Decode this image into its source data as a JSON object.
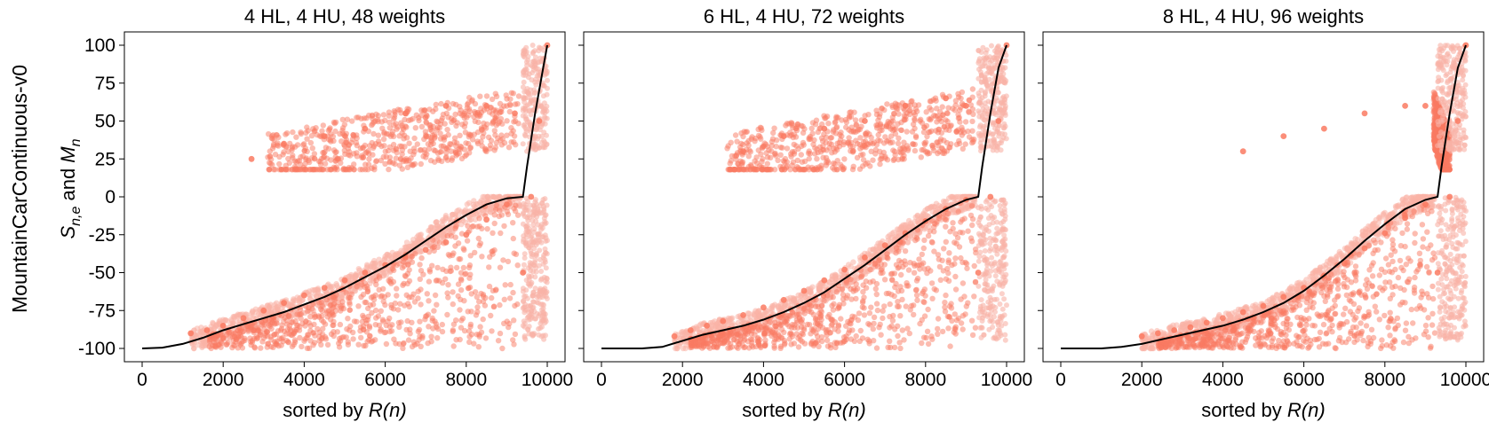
{
  "figure": {
    "row_label": "MountainCarContinuous-v0",
    "ylabel": {
      "prefix": "S",
      "prefix_sub": "n,e",
      "middle": " and ",
      "suffix": "M",
      "suffix_sub": "n"
    },
    "xlabel": {
      "text": "sorted by ",
      "math": "R(n)"
    }
  },
  "colors": {
    "scatter": "#fa7a62",
    "scatter_light": "#f9b3a6",
    "line": "#000000"
  },
  "chart_data": [
    {
      "type": "scatter",
      "title": "4 HL, 4 HU, 48 weights",
      "xlim": [
        0,
        10000
      ],
      "ylim": [
        -100,
        100
      ],
      "xticks": [
        0,
        2000,
        4000,
        6000,
        8000,
        10000
      ],
      "yticks": [
        100,
        75,
        50,
        25,
        0,
        -25,
        -50,
        -75,
        -100
      ],
      "show_yticklabels": true,
      "series": [
        {
          "role": "scatter",
          "x": [
            1200,
            1600,
            2000,
            2500,
            3000,
            3500,
            4000,
            4500,
            5000,
            5500,
            6000,
            6500,
            7000,
            7500,
            8000,
            8500,
            9000,
            9400,
            9600,
            9800,
            10000,
            2700,
            3500,
            4500,
            5500,
            6500,
            7500,
            8500,
            9200
          ],
          "y": [
            -90,
            -88,
            -85,
            -80,
            -75,
            -70,
            -65,
            -60,
            -55,
            -50,
            -45,
            -40,
            -35,
            -30,
            -25,
            -15,
            -5,
            -50,
            0,
            50,
            100,
            25,
            35,
            40,
            45,
            55,
            60,
            60,
            55
          ]
        },
        {
          "role": "mean",
          "x": [
            0,
            500,
            1000,
            1500,
            2000,
            2500,
            3000,
            3500,
            4000,
            4500,
            5000,
            5500,
            6000,
            6500,
            7000,
            7500,
            8000,
            8500,
            9000,
            9400,
            9500,
            9700,
            9900,
            10000
          ],
          "y": [
            -100,
            -99.5,
            -97,
            -93,
            -88,
            -84,
            -80,
            -76,
            -71,
            -66,
            -60,
            -53,
            -46,
            -38,
            -29,
            -20,
            -12,
            -5,
            -1,
            0,
            20,
            55,
            85,
            100
          ]
        }
      ]
    },
    {
      "type": "scatter",
      "title": "6 HL, 4 HU, 72 weights",
      "xlim": [
        0,
        10000
      ],
      "ylim": [
        -100,
        100
      ],
      "xticks": [
        0,
        2000,
        4000,
        6000,
        8000,
        10000
      ],
      "yticks": [
        100,
        75,
        50,
        25,
        0,
        -25,
        -50,
        -75,
        -100
      ],
      "show_yticklabels": false,
      "series": [
        {
          "role": "scatter",
          "x": [
            1800,
            2200,
            2600,
            3000,
            3500,
            4000,
            4500,
            5000,
            5500,
            6000,
            6500,
            7000,
            7500,
            8000,
            8500,
            9000,
            9300,
            9600,
            9800,
            10000,
            3500,
            4500,
            5500,
            6500,
            7500,
            8500,
            9000
          ],
          "y": [
            -92,
            -88,
            -85,
            -82,
            -78,
            -73,
            -68,
            -62,
            -55,
            -48,
            -40,
            -32,
            -24,
            -16,
            -8,
            -2,
            -50,
            0,
            50,
            100,
            30,
            40,
            45,
            50,
            60,
            65,
            60
          ]
        },
        {
          "role": "mean",
          "x": [
            0,
            500,
            1000,
            1500,
            2000,
            2500,
            3000,
            3500,
            4000,
            4500,
            5000,
            5500,
            6000,
            6500,
            7000,
            7500,
            8000,
            8500,
            9000,
            9300,
            9400,
            9600,
            9800,
            10000
          ],
          "y": [
            -100,
            -100,
            -100,
            -99,
            -95,
            -91,
            -88,
            -85,
            -81,
            -76,
            -70,
            -63,
            -54,
            -45,
            -35,
            -25,
            -16,
            -8,
            -2,
            0,
            20,
            55,
            85,
            100
          ]
        }
      ]
    },
    {
      "type": "scatter",
      "title": "8 HL, 4 HU, 96 weights",
      "xlim": [
        0,
        10000
      ],
      "ylim": [
        -100,
        100
      ],
      "xticks": [
        0,
        2000,
        4000,
        6000,
        8000,
        10000
      ],
      "yticks": [
        100,
        75,
        50,
        25,
        0,
        -25,
        -50,
        -75,
        -100
      ],
      "show_yticklabels": false,
      "series": [
        {
          "role": "scatter",
          "x": [
            2000,
            2400,
            2800,
            3200,
            3600,
            4000,
            4500,
            5000,
            5500,
            6000,
            6500,
            7000,
            7500,
            8000,
            8500,
            9000,
            9300,
            9600,
            9800,
            10000,
            4500,
            5500,
            6500,
            7500,
            8500,
            9000
          ],
          "y": [
            -92,
            -90,
            -88,
            -86,
            -83,
            -80,
            -76,
            -72,
            -66,
            -60,
            -52,
            -44,
            -34,
            -24,
            -14,
            -5,
            -50,
            0,
            50,
            100,
            30,
            40,
            45,
            55,
            60,
            60
          ]
        },
        {
          "role": "mean",
          "x": [
            0,
            500,
            1000,
            1500,
            2000,
            2500,
            3000,
            3500,
            4000,
            4500,
            5000,
            5500,
            6000,
            6500,
            7000,
            7500,
            8000,
            8500,
            9000,
            9300,
            9400,
            9600,
            9800,
            10000
          ],
          "y": [
            -100,
            -100,
            -100,
            -99,
            -97,
            -94,
            -91,
            -88,
            -85,
            -81,
            -76,
            -70,
            -62,
            -52,
            -41,
            -29,
            -18,
            -8,
            -2,
            0,
            20,
            55,
            85,
            100
          ]
        }
      ]
    }
  ]
}
